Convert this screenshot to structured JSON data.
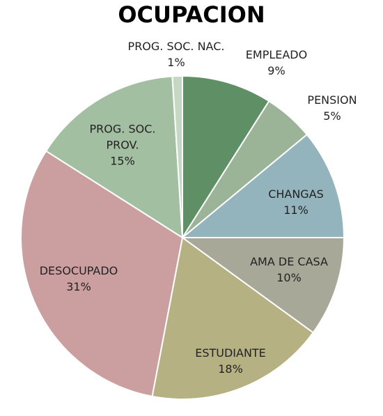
{
  "chart_data": {
    "type": "pie",
    "title": "OCUPACION",
    "categories": [
      "EMPLEADO",
      "PENSION",
      "CHANGAS",
      "AMA DE CASA",
      "ESTUDIANTE",
      "DESOCUPADO",
      "PROG. SOC. PROV.",
      "PROG. SOC. NAC."
    ],
    "values": [
      9,
      5,
      11,
      10,
      18,
      31,
      15,
      1
    ],
    "value_labels": [
      "9%",
      "5%",
      "11%",
      "10%",
      "18%",
      "31%",
      "15%",
      "1%"
    ],
    "colors": [
      "#5f9065",
      "#9bb497",
      "#93b3bd",
      "#a8a899",
      "#b5b183",
      "#cb9f9f",
      "#a3bfa2",
      "#c5d8c3"
    ]
  }
}
